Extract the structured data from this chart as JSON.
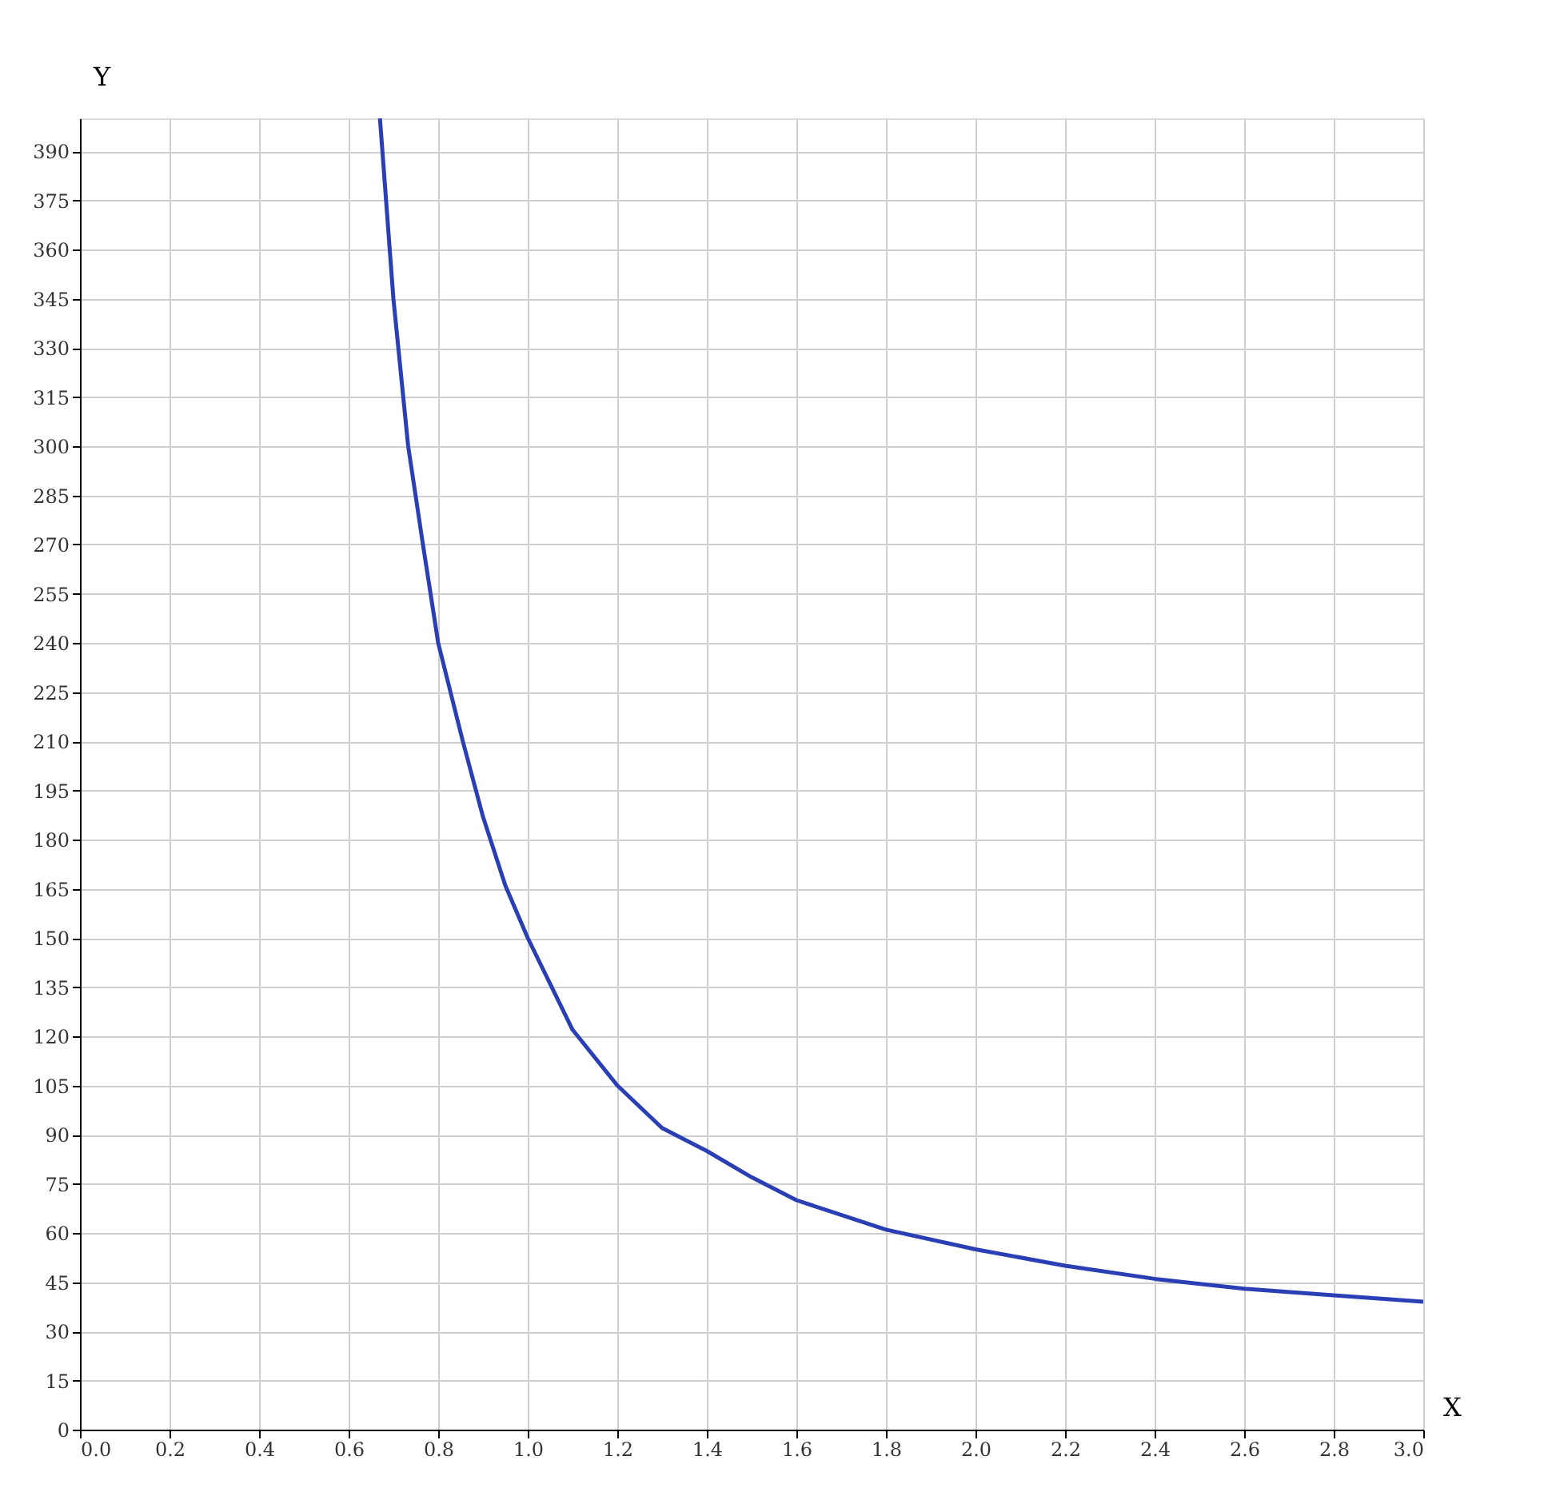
{
  "chart_data": {
    "type": "line",
    "xlabel": "X",
    "ylabel": "Y",
    "x": [
      0.67,
      0.7,
      0.733,
      0.766,
      0.8,
      0.855,
      0.9,
      0.95,
      1.0,
      1.1,
      1.2,
      1.3,
      1.4,
      1.5,
      1.6,
      1.8,
      2.0,
      2.2,
      2.4,
      2.6,
      2.8,
      3.0
    ],
    "series": [
      {
        "color": "#2b3fb5",
        "values": [
          400,
          345,
          300,
          270,
          240,
          210,
          187,
          166,
          150,
          122,
          105,
          92,
          85,
          77,
          70,
          61,
          55,
          50,
          46,
          43,
          41,
          39
        ]
      }
    ],
    "xlim": [
      0,
      3.0
    ],
    "xticks": [
      {
        "value": 0,
        "label": "0.0"
      },
      0.2,
      0.4,
      0.6,
      0.8,
      {
        "value": 1,
        "label": "1.0"
      },
      1.2,
      1.4,
      1.6,
      1.8,
      {
        "value": 2,
        "label": "2.0"
      },
      2.2,
      2.4,
      2.6,
      2.8,
      {
        "value": 3,
        "label": "3.0"
      }
    ],
    "ylim": [
      0,
      400
    ],
    "yticks": [
      0,
      15,
      30,
      45,
      60,
      75,
      90,
      105,
      120,
      135,
      150,
      165,
      180,
      195,
      210,
      225,
      240,
      255,
      270,
      285,
      300,
      315,
      330,
      345,
      360,
      375,
      390
    ],
    "grid": true,
    "marker": "none",
    "line_style": "solid"
  }
}
